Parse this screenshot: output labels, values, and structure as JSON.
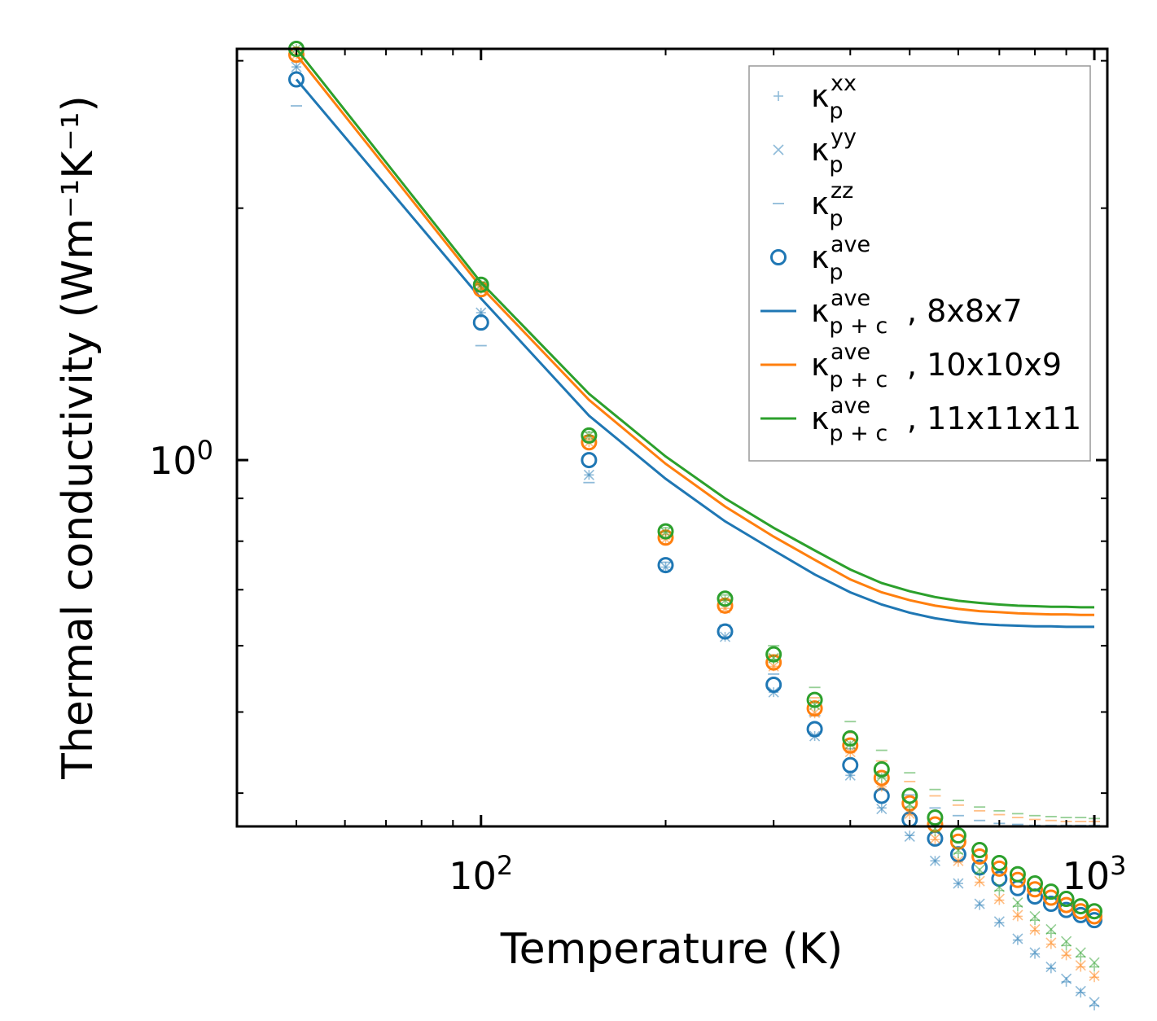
{
  "chart_data": {
    "type": "line",
    "xscale": "log",
    "yscale": "log",
    "xlabel": "Temperature (K)",
    "ylabel": "Thermal conductivity (Wm⁻¹K⁻¹)",
    "xlim": [
      40,
      1050
    ],
    "ylim": [
      0.365,
      3.1
    ],
    "xticks": [
      {
        "base": "10",
        "exp": "2"
      },
      {
        "base": "10",
        "exp": "3"
      }
    ],
    "yticks": [
      {
        "base": "10",
        "exp": "0"
      }
    ],
    "x": [
      50,
      100,
      150,
      200,
      250,
      300,
      350,
      400,
      450,
      500,
      550,
      600,
      650,
      700,
      750,
      800,
      850,
      900,
      950,
      1000
    ],
    "legend": {
      "position": "top-right",
      "entries": [
        {
          "sym": "κ",
          "sub": "p",
          "sup": "xx",
          "tail": "",
          "marker": "plus",
          "color": "#1f77b4"
        },
        {
          "sym": "κ",
          "sub": "p",
          "sup": "yy",
          "tail": "",
          "marker": "x",
          "color": "#1f77b4"
        },
        {
          "sym": "κ",
          "sub": "p",
          "sup": "zz",
          "tail": "",
          "marker": "hline",
          "color": "#1f77b4"
        },
        {
          "sym": "κ",
          "sub": "p",
          "sup": "ave",
          "tail": "",
          "marker": "circle",
          "color": "#1f77b4"
        },
        {
          "sym": "κ",
          "sub": "p + c",
          "sup": "ave",
          "tail": ", 8x8x7",
          "marker": "line",
          "color": "#1f77b4"
        },
        {
          "sym": "κ",
          "sub": "p + c",
          "sup": "ave",
          "tail": ", 10x10x9",
          "marker": "line",
          "color": "#ff7f0e"
        },
        {
          "sym": "κ",
          "sub": "p + c",
          "sup": "ave",
          "tail": ", 11x11x11",
          "marker": "line",
          "color": "#2ca02c"
        }
      ]
    },
    "series": [
      {
        "name": "8x8x7",
        "color": "#1f77b4",
        "kxx": [
          2.95,
          1.5,
          0.96,
          0.745,
          0.615,
          0.528,
          0.468,
          0.42,
          0.384,
          0.356,
          0.332,
          0.312,
          0.294,
          0.28,
          0.267,
          0.257,
          0.247,
          0.238,
          0.231,
          0.223
        ],
        "kyy": [
          2.95,
          1.5,
          0.96,
          0.745,
          0.615,
          0.528,
          0.468,
          0.42,
          0.383,
          0.355,
          0.332,
          0.312,
          0.295,
          0.281,
          0.268,
          0.258,
          0.248,
          0.24,
          0.232,
          0.225
        ],
        "kzz": [
          2.65,
          1.37,
          0.94,
          0.755,
          0.635,
          0.555,
          0.495,
          0.452,
          0.42,
          0.398,
          0.384,
          0.376,
          0.371,
          0.368,
          0.367,
          0.366,
          0.366,
          0.366,
          0.366,
          0.366
        ],
        "kave": [
          2.85,
          1.46,
          1.0,
          0.749,
          0.624,
          0.539,
          0.477,
          0.432,
          0.397,
          0.372,
          0.353,
          0.338,
          0.326,
          0.316,
          0.308,
          0.301,
          0.295,
          0.29,
          0.286,
          0.282
        ],
        "kpc": [
          2.85,
          1.56,
          1.13,
          0.95,
          0.845,
          0.78,
          0.73,
          0.695,
          0.672,
          0.657,
          0.647,
          0.641,
          0.637,
          0.635,
          0.634,
          0.633,
          0.633,
          0.632,
          0.632,
          0.632
        ]
      },
      {
        "name": "10x10x9",
        "color": "#ff7f0e",
        "kxx": [
          3.05,
          1.6,
          1.05,
          0.805,
          0.665,
          0.567,
          0.498,
          0.447,
          0.407,
          0.377,
          0.352,
          0.331,
          0.313,
          0.298,
          0.285,
          0.274,
          0.264,
          0.256,
          0.248,
          0.241
        ],
        "kyy": [
          3.05,
          1.6,
          1.05,
          0.805,
          0.665,
          0.567,
          0.499,
          0.448,
          0.408,
          0.378,
          0.353,
          0.332,
          0.314,
          0.299,
          0.286,
          0.275,
          0.265,
          0.257,
          0.249,
          0.242
        ],
        "kzz": [
          3.05,
          1.6,
          1.06,
          0.815,
          0.68,
          0.585,
          0.52,
          0.472,
          0.437,
          0.413,
          0.397,
          0.387,
          0.381,
          0.377,
          0.374,
          0.372,
          0.371,
          0.37,
          0.37,
          0.37
        ],
        "kave": [
          3.05,
          1.6,
          1.05,
          0.808,
          0.67,
          0.573,
          0.505,
          0.456,
          0.417,
          0.389,
          0.367,
          0.35,
          0.336,
          0.325,
          0.315,
          0.307,
          0.3,
          0.294,
          0.289,
          0.285
        ],
        "kpc": [
          3.05,
          1.61,
          1.18,
          0.99,
          0.88,
          0.81,
          0.76,
          0.72,
          0.695,
          0.68,
          0.67,
          0.664,
          0.66,
          0.658,
          0.656,
          0.655,
          0.654,
          0.654,
          0.653,
          0.653
        ]
      },
      {
        "name": "11x11x11",
        "color": "#2ca02c",
        "kxx": [
          3.1,
          1.62,
          1.07,
          0.82,
          0.68,
          0.578,
          0.508,
          0.456,
          0.417,
          0.385,
          0.36,
          0.339,
          0.321,
          0.306,
          0.293,
          0.282,
          0.272,
          0.263,
          0.255,
          0.248
        ],
        "kyy": [
          3.1,
          1.62,
          1.07,
          0.82,
          0.68,
          0.58,
          0.51,
          0.458,
          0.419,
          0.388,
          0.363,
          0.342,
          0.324,
          0.309,
          0.296,
          0.285,
          0.275,
          0.266,
          0.258,
          0.251
        ],
        "kzz": [
          3.1,
          1.63,
          1.08,
          0.83,
          0.69,
          0.6,
          0.535,
          0.487,
          0.45,
          0.423,
          0.404,
          0.392,
          0.385,
          0.381,
          0.378,
          0.376,
          0.375,
          0.374,
          0.374,
          0.373
        ],
        "kave": [
          3.1,
          1.62,
          1.07,
          0.822,
          0.683,
          0.586,
          0.517,
          0.465,
          0.427,
          0.397,
          0.374,
          0.356,
          0.342,
          0.33,
          0.32,
          0.312,
          0.305,
          0.299,
          0.293,
          0.289
        ],
        "kpc": [
          3.1,
          1.63,
          1.2,
          1.01,
          0.9,
          0.83,
          0.78,
          0.74,
          0.713,
          0.697,
          0.686,
          0.679,
          0.675,
          0.672,
          0.67,
          0.669,
          0.668,
          0.668,
          0.667,
          0.667
        ]
      }
    ]
  }
}
